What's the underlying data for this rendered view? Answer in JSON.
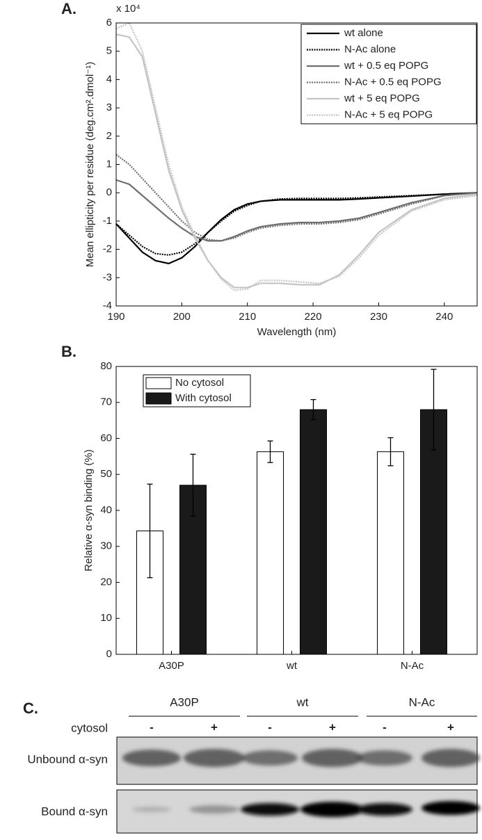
{
  "chart_data": [
    {
      "type": "line",
      "label": "A.",
      "multiplier": "x 10⁴",
      "xlabel": "Wavelength (nm)",
      "ylabel": "Mean ellipticity per residue (deg.cm².dmol⁻¹)",
      "x": [
        190,
        192,
        194,
        196,
        198,
        200,
        202,
        204,
        206,
        208,
        210,
        212,
        215,
        218,
        221,
        224,
        227,
        230,
        235,
        240,
        245
      ],
      "series": [
        {
          "name": "wt alone",
          "color": "#000000",
          "dash": "solid",
          "values": [
            -1.1,
            -1.6,
            -2.1,
            -2.4,
            -2.5,
            -2.3,
            -1.9,
            -1.4,
            -0.95,
            -0.6,
            -0.4,
            -0.3,
            -0.25,
            -0.25,
            -0.25,
            -0.25,
            -0.22,
            -0.18,
            -0.12,
            -0.05,
            0
          ]
        },
        {
          "name": "N-Ac alone",
          "color": "#000000",
          "dash": "dotted",
          "values": [
            -1.1,
            -1.5,
            -1.9,
            -2.15,
            -2.2,
            -2.1,
            -1.8,
            -1.4,
            -1.0,
            -0.65,
            -0.45,
            -0.3,
            -0.22,
            -0.2,
            -0.2,
            -0.2,
            -0.18,
            -0.15,
            -0.1,
            -0.05,
            0
          ]
        },
        {
          "name": "wt + 0.5 eq POPG",
          "color": "#6e6e6e",
          "dash": "solid",
          "values": [
            0.45,
            0.3,
            -0.1,
            -0.5,
            -0.9,
            -1.25,
            -1.55,
            -1.7,
            -1.7,
            -1.55,
            -1.35,
            -1.2,
            -1.1,
            -1.05,
            -1.05,
            -1.0,
            -0.9,
            -0.7,
            -0.35,
            -0.1,
            0
          ]
        },
        {
          "name": "N-Ac + 0.5 eq POPG",
          "color": "#6e6e6e",
          "dash": "dotted",
          "values": [
            1.35,
            1.0,
            0.5,
            0,
            -0.5,
            -1.0,
            -1.4,
            -1.65,
            -1.7,
            -1.6,
            -1.4,
            -1.25,
            -1.15,
            -1.1,
            -1.1,
            -1.05,
            -0.95,
            -0.75,
            -0.4,
            -0.1,
            0
          ]
        },
        {
          "name": "wt + 5 eq POPG",
          "color": "#c4c4c4",
          "dash": "solid",
          "values": [
            5.6,
            5.5,
            4.8,
            2.8,
            0.8,
            -0.6,
            -1.6,
            -2.4,
            -3.0,
            -3.35,
            -3.35,
            -3.2,
            -3.2,
            -3.25,
            -3.25,
            -2.9,
            -2.2,
            -1.4,
            -0.6,
            -0.2,
            -0.05
          ]
        },
        {
          "name": "N-Ac + 5 eq POPG",
          "color": "#c4c4c4",
          "dash": "dotted",
          "values": [
            5.8,
            6.0,
            5.0,
            3.0,
            1.0,
            -0.5,
            -1.5,
            -2.4,
            -3.05,
            -3.45,
            -3.4,
            -3.1,
            -3.1,
            -3.15,
            -3.2,
            -2.95,
            -2.3,
            -1.5,
            -0.65,
            -0.25,
            -0.1
          ]
        }
      ],
      "xlim": [
        190,
        245
      ],
      "xticks": [
        190,
        200,
        210,
        220,
        230,
        240
      ],
      "ylim": [
        -4,
        6
      ],
      "yticks": [
        -4,
        -3,
        -2,
        -1,
        0,
        1,
        2,
        3,
        4,
        5,
        6
      ],
      "legend": "upper-right"
    },
    {
      "type": "bar",
      "label": "B.",
      "ylabel": "Relative α-syn binding (%)",
      "categories": [
        "A30P",
        "wt",
        "N-Ac"
      ],
      "series": [
        {
          "name": "No cytosol",
          "color": "#ffffff",
          "values": [
            34.3,
            56.3,
            56.3
          ],
          "errors": [
            13,
            3,
            3.9
          ]
        },
        {
          "name": "With cytosol",
          "color": "#1a1a1a",
          "values": [
            47,
            68,
            68
          ],
          "errors": [
            8.6,
            2.8,
            11.2
          ]
        }
      ],
      "ylim": [
        0,
        80
      ],
      "yticks": [
        0,
        10,
        20,
        30,
        40,
        50,
        60,
        70,
        80
      ],
      "legend": "upper-left"
    }
  ],
  "blot": {
    "label": "C.",
    "groups": [
      "A30P",
      "wt",
      "N-Ac"
    ],
    "condition": "cytosol",
    "lanes": [
      "-",
      "+",
      "-",
      "+",
      "-",
      "+"
    ],
    "rows": [
      "Unbound α-syn",
      "Bound α-syn"
    ]
  }
}
